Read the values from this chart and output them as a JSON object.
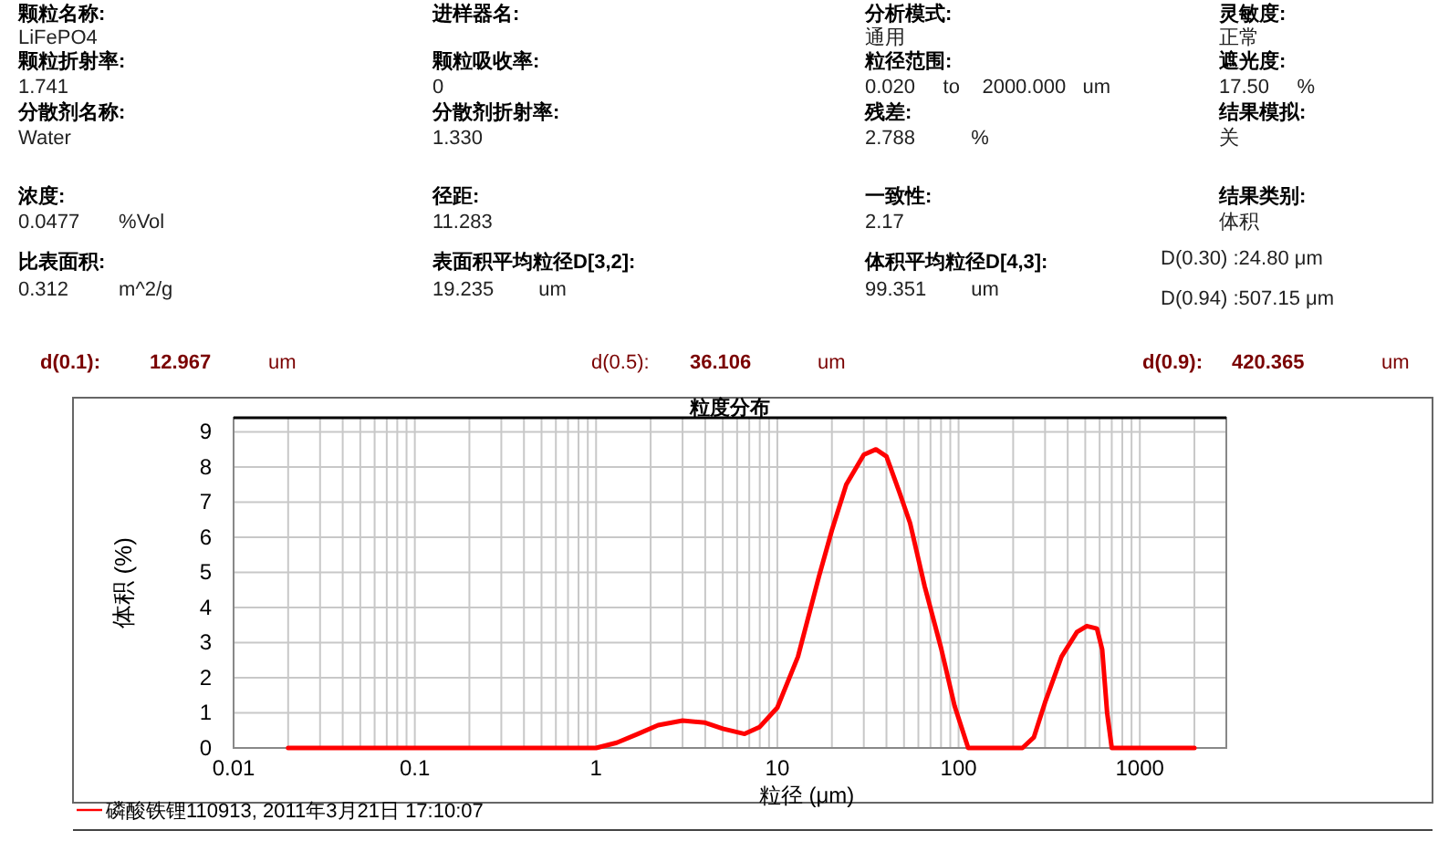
{
  "chart_data": {
    "type": "line",
    "title": "粒度分布",
    "xlabel": "粒径 (μm)",
    "ylabel": "体积 (%)",
    "annotations": [
      "颗粒名称:",
      "LiFePO4",
      "进样器名:",
      "分析模式:",
      "通用",
      "灵敏度:",
      "正常",
      "颗粒折射率:",
      "1.741",
      "颗粒吸收率:",
      "0",
      "粒径范围:",
      "0.020     to    2000.000   um",
      "遮光度:",
      "17.50     %",
      "分散剂名称:",
      "Water",
      "分散剂折射率:",
      "1.330",
      "残差:",
      "2.788          %",
      "结果模拟:",
      "关",
      "浓度:",
      "0.0477       %Vol",
      "径距:",
      "11.283",
      "一致性:",
      "2.17",
      "结果类别:",
      "体积",
      "比表面积:",
      "0.312         m^2/g",
      "表面积平均粒径D[3,2]:",
      "19.235        um",
      "体积平均粒径D[4,3]:",
      "99.351        um",
      "D(0.30) :24.80 μm",
      "D(0.94) :507.15 μm",
      "d(0.1):",
      "12.967",
      "um",
      "d(0.5):",
      "36.106",
      "um",
      "d(0.9):",
      "420.365",
      "um"
    ],
    "series": [
      {
        "name": "磷酸铁锂110913, 2011年3月21日 17:10:07",
        "color": "#ff0000",
        "x": [
          0.02,
          0.1,
          0.5,
          1,
          1.3,
          1.7,
          2.2,
          3,
          4,
          5,
          6.6,
          8,
          10,
          13,
          17,
          20,
          24,
          30,
          35,
          40,
          47,
          54,
          65,
          80,
          95,
          113,
          160,
          225,
          260,
          300,
          370,
          450,
          510,
          580,
          620,
          660,
          700,
          1000,
          2000
        ],
        "values": [
          0,
          0,
          0,
          0,
          0.15,
          0.4,
          0.65,
          0.78,
          0.72,
          0.55,
          0.4,
          0.6,
          1.15,
          2.6,
          4.9,
          6.2,
          7.5,
          8.35,
          8.5,
          8.3,
          7.3,
          6.4,
          4.6,
          2.85,
          1.2,
          0,
          0,
          0,
          0.3,
          1.3,
          2.6,
          3.3,
          3.47,
          3.4,
          2.8,
          1,
          0,
          0,
          0
        ]
      }
    ],
    "log": "x",
    "xlim": [
      0.01,
      3000
    ],
    "ylim": [
      0,
      9.4
    ],
    "xticks": [
      0.01,
      0.1,
      1,
      10,
      100,
      1000
    ],
    "yticks": [
      0,
      1,
      2,
      3,
      4,
      5,
      6,
      7,
      8,
      9
    ],
    "grid": true,
    "legend": "bottom"
  }
}
